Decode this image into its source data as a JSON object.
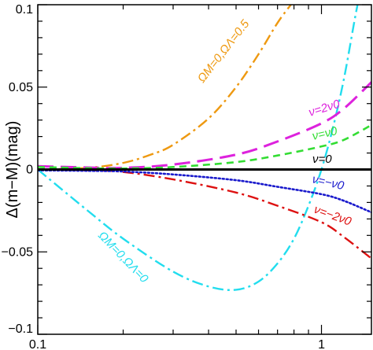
{
  "chart_data": {
    "type": "line",
    "ylabel": "Δ(m−M)(mag)",
    "xlabel": "",
    "x_scale": "log",
    "xlim": [
      0.1,
      1.5
    ],
    "ylim": [
      -0.1,
      0.1
    ],
    "x_ticks": [
      0.1,
      1
    ],
    "x_tick_labels": [
      "0.1",
      "1"
    ],
    "y_ticks": [
      -0.1,
      -0.05,
      0,
      0.05,
      0.1
    ],
    "y_tick_labels": [
      "−0.1",
      "−0.05",
      "0",
      "0.05",
      "0.1"
    ],
    "grid": false,
    "legend": "none",
    "series": [
      {
        "name": "ν=0",
        "color": "#000000",
        "dash": "solid",
        "x": [
          0.1,
          0.2,
          0.5,
          1.0,
          1.5
        ],
        "y": [
          0,
          0,
          0,
          0,
          0
        ]
      },
      {
        "name": "ν=ν0",
        "color": "#33dd33",
        "dash": "short-dash",
        "x": [
          0.1,
          0.15,
          0.2,
          0.3,
          0.5,
          0.7,
          1.0,
          1.2,
          1.5
        ],
        "y": [
          0.0015,
          0.0008,
          0.0006,
          0.0015,
          0.0045,
          0.0085,
          0.014,
          0.018,
          0.027
        ]
      },
      {
        "name": "ν=2ν0",
        "color": "#dd22dd",
        "dash": "long-dash",
        "x": [
          0.1,
          0.15,
          0.2,
          0.3,
          0.5,
          0.7,
          1.0,
          1.2,
          1.5
        ],
        "y": [
          0.002,
          0.0012,
          0.001,
          0.003,
          0.009,
          0.017,
          0.028,
          0.037,
          0.053
        ]
      },
      {
        "name": "ν=−ν0",
        "color": "#1a1acc",
        "dash": "dotted",
        "x": [
          0.1,
          0.15,
          0.2,
          0.3,
          0.5,
          0.7,
          1.0,
          1.2,
          1.5
        ],
        "y": [
          -0.0005,
          -0.0008,
          -0.0012,
          -0.003,
          -0.0065,
          -0.0105,
          -0.015,
          -0.019,
          -0.026
        ]
      },
      {
        "name": "ν=−2ν0",
        "color": "#dd1111",
        "dash": "dash-dot",
        "x": [
          0.1,
          0.15,
          0.2,
          0.3,
          0.5,
          0.7,
          1.0,
          1.2,
          1.5
        ],
        "y": [
          0.0,
          -0.0005,
          -0.0015,
          -0.006,
          -0.014,
          -0.022,
          -0.032,
          -0.041,
          -0.054
        ]
      },
      {
        "name": "ΩM=0,ΩΛ=0.5",
        "color": "#ee9911",
        "dash": "dash-dot",
        "x": [
          0.1,
          0.15,
          0.2,
          0.25,
          0.3,
          0.4,
          0.5,
          0.6,
          0.7,
          0.78
        ],
        "y": [
          0.0,
          0.001,
          0.004,
          0.009,
          0.015,
          0.031,
          0.05,
          0.07,
          0.089,
          0.1
        ]
      },
      {
        "name": "ΩM=0,ΩΛ=0",
        "color": "#22ddee",
        "dash": "dash-dot",
        "x": [
          0.1,
          0.15,
          0.2,
          0.3,
          0.4,
          0.5,
          0.6,
          0.7,
          0.8,
          0.9,
          1.0,
          1.1,
          1.2,
          1.3,
          1.34
        ],
        "y": [
          0.0,
          -0.025,
          -0.042,
          -0.062,
          -0.071,
          -0.073,
          -0.068,
          -0.057,
          -0.042,
          -0.022,
          0.0,
          0.026,
          0.055,
          0.088,
          0.1
        ]
      }
    ],
    "annotations": [
      {
        "text": "ΩM=0,ΩΛ=0.5",
        "series": "ΩM=0,ΩΛ=0.5"
      },
      {
        "text": "ν=2ν0",
        "series": "ν=2ν0"
      },
      {
        "text": "ν=ν0",
        "series": "ν=ν0"
      },
      {
        "text": "ν=0",
        "series": "ν=0"
      },
      {
        "text": "ν=−ν0",
        "series": "ν=−ν0"
      },
      {
        "text": "ν=−2ν0",
        "series": "ν=−2ν0"
      },
      {
        "text": "ΩM=0,ΩΛ=0",
        "series": "ΩM=0,ΩΛ=0"
      }
    ]
  }
}
